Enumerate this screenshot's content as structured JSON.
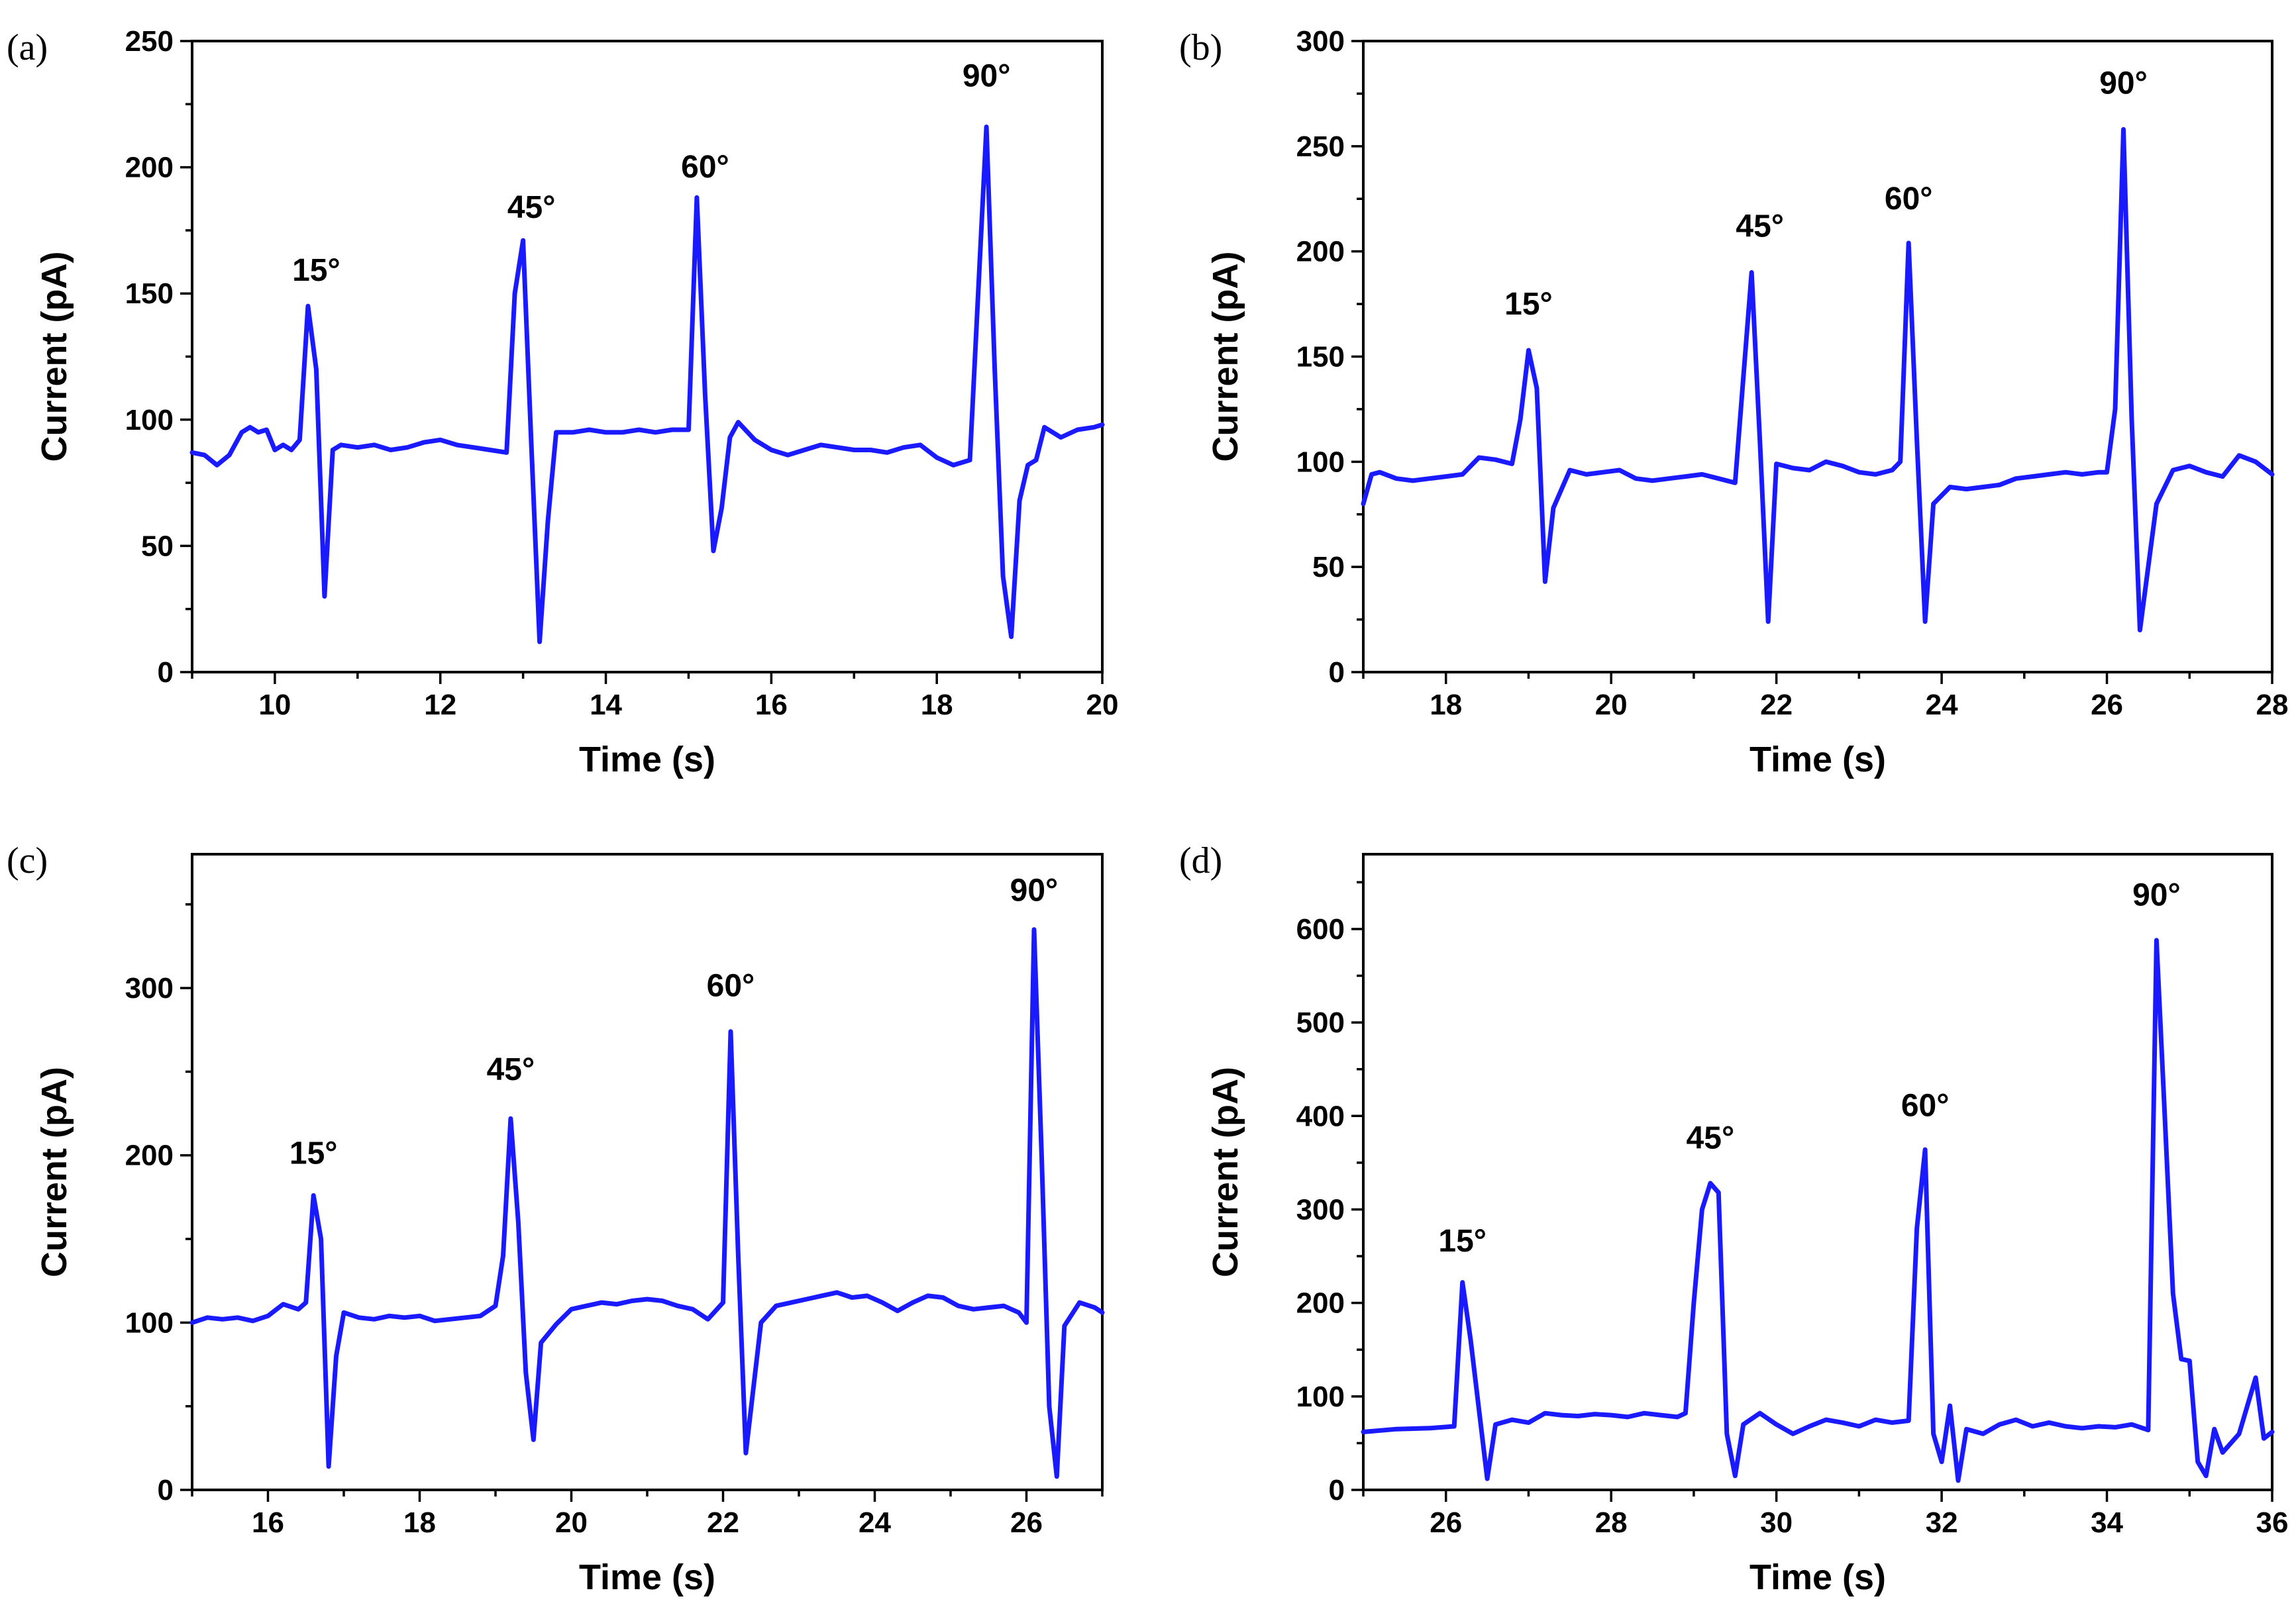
{
  "colors": {
    "series": "#1a1aff",
    "axis": "#000000"
  },
  "chart_data": [
    {
      "type": "line",
      "panel_label": "(a)",
      "xlabel": "Time (s)",
      "ylabel": "Current (pA)",
      "xlim": [
        9,
        20
      ],
      "ylim": [
        0,
        250
      ],
      "xticks": [
        10,
        12,
        14,
        16,
        18,
        20
      ],
      "yticks": [
        0,
        50,
        100,
        150,
        200,
        250
      ],
      "annotations": [
        {
          "text": "15°",
          "x": 10.5,
          "y": 155
        },
        {
          "text": "45°",
          "x": 13.1,
          "y": 180
        },
        {
          "text": "60°",
          "x": 15.2,
          "y": 196
        },
        {
          "text": "90°",
          "x": 18.6,
          "y": 232
        }
      ],
      "series": [
        {
          "name": "current",
          "x": [
            9.0,
            9.15,
            9.3,
            9.45,
            9.6,
            9.7,
            9.8,
            9.9,
            10.0,
            10.1,
            10.2,
            10.3,
            10.4,
            10.5,
            10.6,
            10.7,
            10.8,
            11.0,
            11.2,
            11.4,
            11.6,
            11.8,
            12.0,
            12.2,
            12.4,
            12.6,
            12.8,
            12.9,
            13.0,
            13.1,
            13.2,
            13.3,
            13.4,
            13.6,
            13.8,
            14.0,
            14.2,
            14.4,
            14.6,
            14.8,
            15.0,
            15.1,
            15.2,
            15.3,
            15.4,
            15.5,
            15.6,
            15.8,
            16.0,
            16.2,
            16.4,
            16.6,
            16.8,
            17.0,
            17.2,
            17.4,
            17.6,
            17.8,
            18.0,
            18.2,
            18.4,
            18.6,
            18.7,
            18.8,
            18.9,
            19.0,
            19.1,
            19.2,
            19.3,
            19.5,
            19.7,
            19.9,
            20.0
          ],
          "y": [
            87,
            86,
            82,
            86,
            95,
            97,
            95,
            96,
            88,
            90,
            88,
            92,
            145,
            120,
            30,
            88,
            90,
            89,
            90,
            88,
            89,
            91,
            92,
            90,
            89,
            88,
            87,
            150,
            171,
            90,
            12,
            60,
            95,
            95,
            96,
            95,
            95,
            96,
            95,
            96,
            96,
            188,
            110,
            48,
            65,
            93,
            99,
            92,
            88,
            86,
            88,
            90,
            89,
            88,
            88,
            87,
            89,
            90,
            85,
            82,
            84,
            216,
            120,
            38,
            14,
            68,
            82,
            84,
            97,
            93,
            96,
            97,
            98
          ]
        }
      ]
    },
    {
      "type": "line",
      "panel_label": "(b)",
      "xlabel": "Time (s)",
      "ylabel": "Current (pA)",
      "xlim": [
        17,
        28
      ],
      "ylim": [
        0,
        300
      ],
      "xticks": [
        18,
        20,
        22,
        24,
        26,
        28
      ],
      "yticks": [
        0,
        50,
        100,
        150,
        200,
        250,
        300
      ],
      "annotations": [
        {
          "text": "15°",
          "x": 19.0,
          "y": 170
        },
        {
          "text": "45°",
          "x": 21.8,
          "y": 207
        },
        {
          "text": "60°",
          "x": 23.6,
          "y": 220
        },
        {
          "text": "90°",
          "x": 26.2,
          "y": 275
        }
      ],
      "series": [
        {
          "name": "current",
          "x": [
            17.0,
            17.1,
            17.2,
            17.4,
            17.6,
            17.8,
            18.0,
            18.2,
            18.4,
            18.6,
            18.8,
            18.9,
            19.0,
            19.1,
            19.2,
            19.3,
            19.5,
            19.7,
            19.9,
            20.1,
            20.3,
            20.5,
            20.7,
            20.9,
            21.1,
            21.3,
            21.5,
            21.6,
            21.7,
            21.8,
            21.9,
            22.0,
            22.2,
            22.4,
            22.6,
            22.8,
            23.0,
            23.2,
            23.4,
            23.5,
            23.6,
            23.7,
            23.8,
            23.9,
            24.1,
            24.3,
            24.5,
            24.7,
            24.9,
            25.1,
            25.3,
            25.5,
            25.7,
            25.9,
            26.0,
            26.1,
            26.2,
            26.3,
            26.4,
            26.6,
            26.8,
            27.0,
            27.2,
            27.4,
            27.6,
            27.8,
            28.0
          ],
          "y": [
            80,
            94,
            95,
            92,
            91,
            92,
            93,
            94,
            102,
            101,
            99,
            120,
            153,
            135,
            43,
            78,
            96,
            94,
            95,
            96,
            92,
            91,
            92,
            93,
            94,
            92,
            90,
            140,
            190,
            110,
            24,
            99,
            97,
            96,
            100,
            98,
            95,
            94,
            96,
            100,
            204,
            110,
            24,
            80,
            88,
            87,
            88,
            89,
            92,
            93,
            94,
            95,
            94,
            95,
            95,
            125,
            258,
            120,
            20,
            80,
            96,
            98,
            95,
            93,
            103,
            100,
            94
          ]
        }
      ]
    },
    {
      "type": "line",
      "panel_label": "(c)",
      "xlabel": "Time (s)",
      "ylabel": "Current (pA)",
      "xlim": [
        15,
        27
      ],
      "ylim": [
        0,
        380
      ],
      "xticks": [
        16,
        18,
        20,
        22,
        24,
        26
      ],
      "yticks": [
        0,
        100,
        200,
        300
      ],
      "annotations": [
        {
          "text": "15°",
          "x": 16.6,
          "y": 195
        },
        {
          "text": "45°",
          "x": 19.2,
          "y": 245
        },
        {
          "text": "60°",
          "x": 22.1,
          "y": 295
        },
        {
          "text": "90°",
          "x": 26.1,
          "y": 352
        }
      ],
      "series": [
        {
          "name": "current",
          "x": [
            15.0,
            15.2,
            15.4,
            15.6,
            15.8,
            16.0,
            16.2,
            16.4,
            16.5,
            16.6,
            16.7,
            16.8,
            16.9,
            17.0,
            17.2,
            17.4,
            17.6,
            17.8,
            18.0,
            18.2,
            18.4,
            18.6,
            18.8,
            19.0,
            19.1,
            19.2,
            19.3,
            19.4,
            19.5,
            19.6,
            19.8,
            20.0,
            20.2,
            20.4,
            20.6,
            20.8,
            21.0,
            21.2,
            21.4,
            21.6,
            21.8,
            22.0,
            22.1,
            22.2,
            22.3,
            22.5,
            22.7,
            22.9,
            23.1,
            23.3,
            23.5,
            23.7,
            23.9,
            24.1,
            24.3,
            24.5,
            24.7,
            24.9,
            25.1,
            25.3,
            25.5,
            25.7,
            25.9,
            26.0,
            26.1,
            26.2,
            26.3,
            26.4,
            26.5,
            26.7,
            26.9,
            27.0
          ],
          "y": [
            100,
            103,
            102,
            103,
            101,
            104,
            111,
            108,
            112,
            176,
            150,
            14,
            80,
            106,
            103,
            102,
            104,
            103,
            104,
            101,
            102,
            103,
            104,
            110,
            140,
            222,
            160,
            70,
            30,
            88,
            99,
            108,
            110,
            112,
            111,
            113,
            114,
            113,
            110,
            108,
            102,
            112,
            274,
            140,
            22,
            100,
            110,
            112,
            114,
            116,
            118,
            115,
            116,
            112,
            107,
            112,
            116,
            115,
            110,
            108,
            109,
            110,
            106,
            100,
            335,
            200,
            50,
            8,
            98,
            112,
            109,
            106
          ]
        }
      ]
    },
    {
      "type": "line",
      "panel_label": "(d)",
      "xlabel": "Time (s)",
      "ylabel": "Current (pA)",
      "xlim": [
        25,
        36
      ],
      "ylim": [
        0,
        680
      ],
      "xticks": [
        26,
        28,
        30,
        32,
        34,
        36
      ],
      "yticks": [
        0,
        100,
        200,
        300,
        400,
        500,
        600
      ],
      "annotations": [
        {
          "text": "15°",
          "x": 26.2,
          "y": 255
        },
        {
          "text": "45°",
          "x": 29.2,
          "y": 365
        },
        {
          "text": "60°",
          "x": 31.8,
          "y": 400
        },
        {
          "text": "90°",
          "x": 34.6,
          "y": 625
        }
      ],
      "series": [
        {
          "name": "current",
          "x": [
            25.0,
            25.4,
            25.8,
            26.1,
            26.2,
            26.3,
            26.5,
            26.6,
            26.8,
            27.0,
            27.2,
            27.4,
            27.6,
            27.8,
            28.0,
            28.2,
            28.4,
            28.6,
            28.8,
            28.9,
            29.0,
            29.1,
            29.2,
            29.3,
            29.4,
            29.5,
            29.6,
            29.8,
            30.0,
            30.2,
            30.4,
            30.6,
            30.8,
            31.0,
            31.2,
            31.4,
            31.6,
            31.7,
            31.8,
            31.9,
            32.0,
            32.1,
            32.2,
            32.3,
            32.5,
            32.7,
            32.9,
            33.1,
            33.3,
            33.5,
            33.7,
            33.9,
            34.1,
            34.3,
            34.5,
            34.6,
            34.7,
            34.8,
            34.9,
            35.0,
            35.1,
            35.2,
            35.3,
            35.4,
            35.6,
            35.8,
            35.9,
            36.0
          ],
          "y": [
            62,
            65,
            66,
            68,
            222,
            160,
            12,
            70,
            75,
            72,
            82,
            80,
            79,
            81,
            80,
            78,
            82,
            80,
            78,
            82,
            200,
            300,
            328,
            318,
            60,
            15,
            70,
            82,
            70,
            60,
            68,
            75,
            72,
            68,
            75,
            72,
            74,
            280,
            364,
            60,
            30,
            90,
            10,
            65,
            60,
            70,
            75,
            68,
            72,
            68,
            66,
            68,
            67,
            70,
            64,
            588,
            400,
            210,
            140,
            138,
            30,
            15,
            65,
            40,
            60,
            120,
            55,
            62
          ]
        }
      ]
    }
  ]
}
